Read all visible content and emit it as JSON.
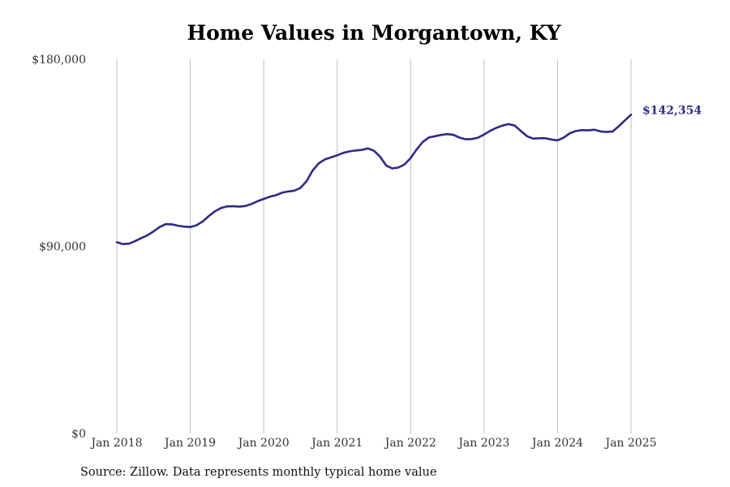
{
  "chart_data": {
    "type": "line",
    "title": "Home Values in Morgantown, KY",
    "subtitle": "",
    "xlabel": "",
    "ylabel": "",
    "source": "Source: Zillow. Data represents monthly typical home value",
    "ylim": [
      0,
      180000
    ],
    "xlim": [
      "2018-01",
      "2025-01"
    ],
    "grid": "vertical",
    "colors": {
      "line": "#2e2a86",
      "grid": "#bfbfbf"
    },
    "y_ticks": [
      {
        "value": 0,
        "label": "$0"
      },
      {
        "value": 90000,
        "label": "$90,000"
      },
      {
        "value": 180000,
        "label": "$180,000"
      }
    ],
    "x_ticks": [
      {
        "value": "2018-01",
        "label": "Jan 2018"
      },
      {
        "value": "2019-01",
        "label": "Jan 2019"
      },
      {
        "value": "2020-01",
        "label": "Jan 2020"
      },
      {
        "value": "2021-01",
        "label": "Jan 2021"
      },
      {
        "value": "2022-01",
        "label": "Jan 2022"
      },
      {
        "value": "2023-01",
        "label": "Jan 2023"
      },
      {
        "value": "2024-01",
        "label": "Jan 2024"
      },
      {
        "value": "2025-01",
        "label": "Jan 2025"
      }
    ],
    "end_label": "$142,354",
    "series": [
      {
        "name": "",
        "x": [
          "2018-01",
          "2018-02",
          "2018-03",
          "2018-04",
          "2018-05",
          "2018-06",
          "2018-07",
          "2018-08",
          "2018-09",
          "2018-10",
          "2018-11",
          "2018-12",
          "2019-01",
          "2019-02",
          "2019-03",
          "2019-04",
          "2019-05",
          "2019-06",
          "2019-07",
          "2019-08",
          "2019-09",
          "2019-10",
          "2019-11",
          "2019-12",
          "2020-01",
          "2020-02",
          "2020-03",
          "2020-04",
          "2020-05",
          "2020-06",
          "2020-07",
          "2020-08",
          "2020-09",
          "2020-10",
          "2020-11",
          "2020-12",
          "2021-01",
          "2021-02",
          "2021-03",
          "2021-04",
          "2021-05",
          "2021-06",
          "2021-07",
          "2021-08",
          "2021-09",
          "2021-10",
          "2021-11",
          "2021-12",
          "2022-01",
          "2022-02",
          "2022-03",
          "2022-04",
          "2022-05",
          "2022-06",
          "2022-07",
          "2022-08",
          "2022-09",
          "2022-10",
          "2022-11",
          "2022-12",
          "2023-01",
          "2023-02",
          "2023-03",
          "2023-04",
          "2023-05",
          "2023-06",
          "2023-07",
          "2023-08",
          "2023-09",
          "2023-10",
          "2023-11",
          "2023-12",
          "2024-01",
          "2024-02",
          "2024-03",
          "2024-04",
          "2024-05",
          "2024-06",
          "2024-07",
          "2024-08",
          "2024-09",
          "2024-10",
          "2024-11",
          "2024-12",
          "2025-01"
        ],
        "values": [
          92000,
          91100,
          91300,
          92500,
          94000,
          95300,
          97200,
          99300,
          100700,
          100600,
          99900,
          99500,
          99300,
          100100,
          101900,
          104500,
          106800,
          108400,
          109200,
          109300,
          109100,
          109400,
          110400,
          111700,
          112800,
          113900,
          114600,
          115800,
          116400,
          116800,
          118100,
          121400,
          126500,
          130000,
          131800,
          132800,
          133800,
          135000,
          135700,
          136100,
          136400,
          137100,
          136000,
          133200,
          128900,
          127500,
          127900,
          129400,
          132500,
          136700,
          140300,
          142400,
          143000,
          143600,
          144000,
          143600,
          142300,
          141500,
          141600,
          142300,
          143800,
          145600,
          147000,
          148100,
          148800,
          148100,
          145500,
          143000,
          141800,
          142000,
          142000,
          141400,
          141000,
          142300,
          144400,
          145500,
          145900,
          145800,
          146100,
          145300,
          145000,
          145300,
          147800,
          150600,
          142354
        ]
      }
    ]
  }
}
